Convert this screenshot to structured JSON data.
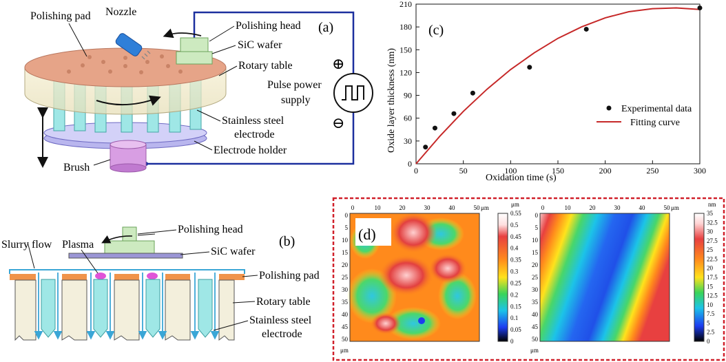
{
  "panel_a": {
    "tag": "(a)",
    "labels": {
      "polishing_pad": "Polishing pad",
      "nozzle": "Nozzle",
      "polishing_head": "Polishing head",
      "sic_wafer": "SiC wafer",
      "rotary_table": "Rotary table",
      "pulse_power_1": "Pulse power",
      "pulse_power_2": "supply",
      "electrode_1": "Stainless steel",
      "electrode_2": "electrode",
      "electrode_holder": "Electrode holder",
      "brush": "Brush",
      "plus": "⊕",
      "minus": "⊖"
    }
  },
  "panel_b": {
    "tag": "(b)",
    "labels": {
      "polishing_head": "Polishing head",
      "slurry_flow": "Slurry flow",
      "plasma": "Plasma",
      "sic_wafer": "SiC wafer",
      "polishing_pad": "Polishing pad",
      "rotary_table": "Rotary table",
      "electrode_1": "Stainless steel",
      "electrode_2": "electrode"
    }
  },
  "panel_c": {
    "tag": "(c)",
    "legend_points": "Experimental data",
    "legend_curve": "Fitting curve"
  },
  "panel_d": {
    "tag": "(d)",
    "map1_unit": "μm",
    "map2_unit": "nm",
    "axis_unit": "μm",
    "map1_scale": [
      "0.55",
      "0.5",
      "0.45",
      "0.4",
      "0.35",
      "0.3",
      "0.25",
      "0.2",
      "0.15",
      "0.1",
      "0.05",
      "0"
    ],
    "map2_scale": [
      "35",
      "32.5",
      "30",
      "27.5",
      "25",
      "22.5",
      "20",
      "17.5",
      "15",
      "12.5",
      "10",
      "7.5",
      "5",
      "2.5",
      "0"
    ],
    "ticks": [
      "0",
      "10",
      "20",
      "30",
      "40",
      "50"
    ]
  },
  "colors": {
    "wire": "#1b2f9e",
    "fit": "#c62828",
    "frame": "#d0202a",
    "pad": "#f0934a",
    "electrode": "#9fe7e6",
    "head": "#cdeac0",
    "holder": "#b9b6ee",
    "brush": "#d89ee3"
  },
  "chart_data": {
    "type": "scatter",
    "title": "",
    "xlabel": "Oxidation time (s)",
    "ylabel": "Oxide layer thickness (nm)",
    "xlim": [
      0,
      300
    ],
    "ylim": [
      0,
      210
    ],
    "xticks": [
      0,
      50,
      100,
      150,
      200,
      250,
      300
    ],
    "yticks": [
      0,
      30,
      60,
      90,
      120,
      150,
      180,
      210
    ],
    "grid": false,
    "legend_position": "right",
    "series": [
      {
        "name": "Experimental data",
        "kind": "points",
        "x": [
          10,
          20,
          40,
          60,
          120,
          180,
          300
        ],
        "y": [
          22,
          47,
          66,
          93,
          127,
          177,
          205
        ]
      },
      {
        "name": "Fitting curve",
        "kind": "line",
        "x": [
          0,
          25,
          50,
          75,
          100,
          125,
          150,
          175,
          200,
          225,
          250,
          275,
          300
        ],
        "y": [
          0,
          36,
          69,
          98,
          124,
          146,
          165,
          180,
          192,
          200,
          204,
          205,
          203
        ]
      }
    ]
  }
}
